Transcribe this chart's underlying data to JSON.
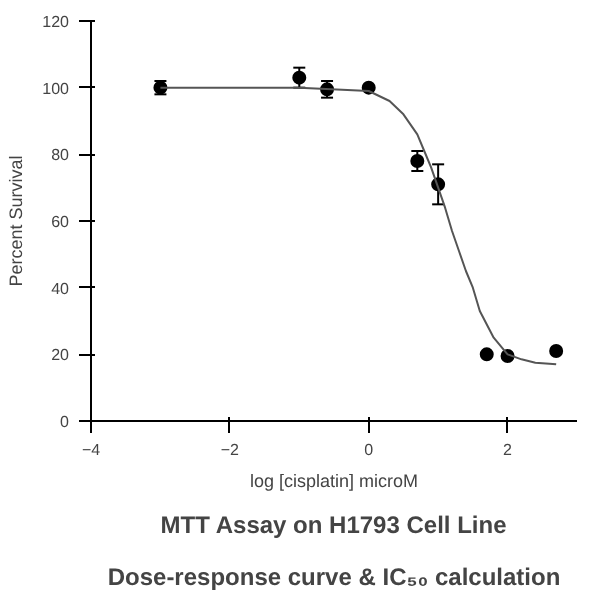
{
  "chart_data": {
    "type": "scatter",
    "title": "MTT Assay on H1793 Cell Line\nDose-response curve & IC₅₀ calculation",
    "xlabel": "log [cisplatin] microM",
    "ylabel": "Percent Survival",
    "xlim": [
      -4,
      3
    ],
    "xticks": [
      -4,
      -2,
      0,
      2
    ],
    "ylim": [
      0,
      120
    ],
    "yticks": [
      0,
      20,
      40,
      60,
      80,
      100,
      120
    ],
    "grid": false,
    "series": [
      {
        "color": "#000000",
        "marker": "circle",
        "x": [
          -3,
          -1,
          -0.6,
          0,
          0.7,
          1.0,
          1.7,
          2.0,
          2.7
        ],
        "values": [
          100,
          103,
          99.5,
          100,
          78,
          71,
          20,
          19.5,
          21
        ],
        "errors": [
          2,
          3,
          2.5,
          null,
          3,
          6,
          null,
          null,
          null
        ]
      },
      {
        "type": "line",
        "color": "#555555",
        "line_style": "solid",
        "x": [
          -3,
          -1,
          0,
          0.3,
          0.5,
          0.7,
          0.8,
          0.9,
          1.0,
          1.1,
          1.2,
          1.3,
          1.4,
          1.5,
          1.6,
          1.8,
          2.0,
          2.2,
          2.4,
          2.7
        ],
        "values": [
          100,
          100,
          99,
          96,
          92,
          86,
          81,
          76,
          70,
          64,
          57,
          51,
          45,
          40,
          33,
          25,
          20,
          18.5,
          17.5,
          17
        ]
      }
    ]
  }
}
